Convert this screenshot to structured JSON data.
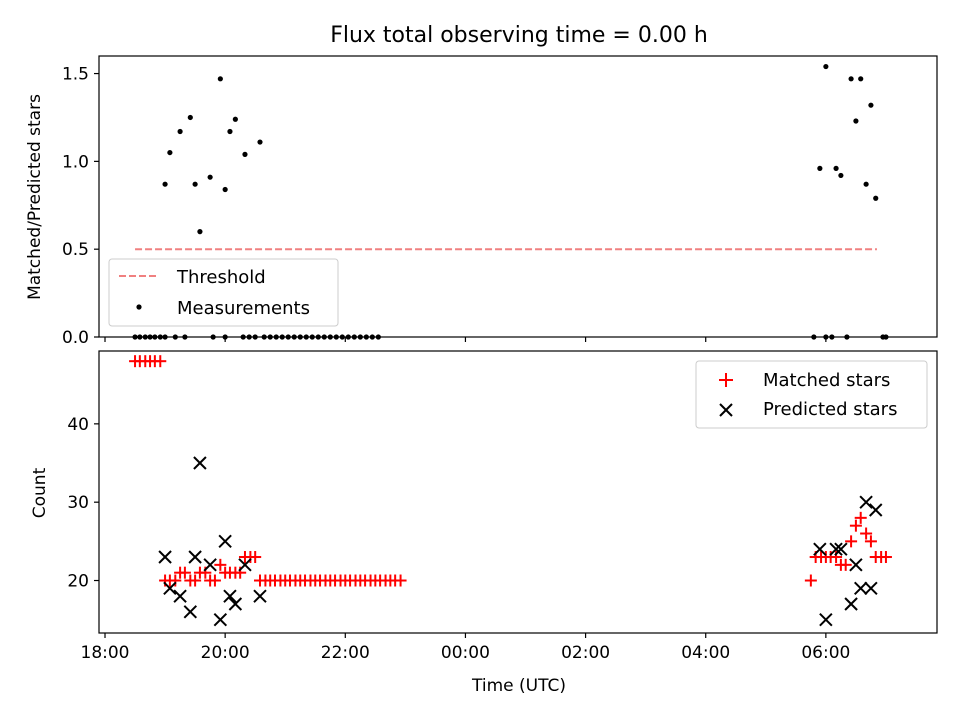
{
  "figure_title": "Flux total observing time = 0.00 h",
  "chart_data": [
    {
      "type": "scatter",
      "title": "Flux total observing time = 0.00 h",
      "xlabel": "",
      "ylabel": "Matched/Predicted stars",
      "x_unit": "hours since 18:00 UTC",
      "xlim": [
        -0.1,
        13.85
      ],
      "ylim": [
        0,
        1.6
      ],
      "x_ticks": [
        0,
        2,
        4,
        6,
        8,
        10,
        12
      ],
      "x_tick_labels": [
        "",
        "",
        "",
        "",
        "",
        "",
        ""
      ],
      "y_ticks": [
        0,
        0.5,
        1.0,
        1.5
      ],
      "y_tick_labels": [
        "0.0",
        "0.5",
        "1.0",
        "1.5"
      ],
      "legend_position": "lower-left",
      "grid": false,
      "threshold": {
        "name": "Threshold",
        "y": 0.5,
        "x": [
          0.5,
          12.85
        ],
        "color": "#f08080",
        "style": "dashed"
      },
      "series": [
        {
          "name": "Measurements",
          "marker": "dot",
          "color": "#000000",
          "points": [
            [
              0.5,
              0
            ],
            [
              0.58,
              0
            ],
            [
              0.67,
              0
            ],
            [
              0.75,
              0
            ],
            [
              0.83,
              0
            ],
            [
              0.92,
              0
            ],
            [
              1.0,
              0
            ],
            [
              1.17,
              0
            ],
            [
              1.33,
              0
            ],
            [
              1.8,
              0
            ],
            [
              2.0,
              0
            ],
            [
              2.3,
              0
            ],
            [
              2.4,
              0
            ],
            [
              2.5,
              0
            ],
            [
              2.65,
              0
            ],
            [
              2.75,
              0
            ],
            [
              2.85,
              0
            ],
            [
              2.95,
              0
            ],
            [
              3.05,
              0
            ],
            [
              3.15,
              0
            ],
            [
              3.25,
              0
            ],
            [
              3.35,
              0
            ],
            [
              3.45,
              0
            ],
            [
              3.55,
              0
            ],
            [
              3.65,
              0
            ],
            [
              3.75,
              0
            ],
            [
              3.85,
              0
            ],
            [
              3.95,
              0
            ],
            [
              4.05,
              0
            ],
            [
              4.15,
              0
            ],
            [
              4.25,
              0
            ],
            [
              4.35,
              0
            ],
            [
              4.45,
              0
            ],
            [
              4.55,
              0
            ],
            [
              1.0,
              0.87
            ],
            [
              1.08,
              1.05
            ],
            [
              1.25,
              1.17
            ],
            [
              1.42,
              1.25
            ],
            [
              1.5,
              0.87
            ],
            [
              1.58,
              0.6
            ],
            [
              1.75,
              0.91
            ],
            [
              1.92,
              1.47
            ],
            [
              2.0,
              0.84
            ],
            [
              2.08,
              1.17
            ],
            [
              2.17,
              1.24
            ],
            [
              2.33,
              1.04
            ],
            [
              2.58,
              1.11
            ],
            [
              11.8,
              0
            ],
            [
              12.0,
              0
            ],
            [
              12.1,
              0
            ],
            [
              12.35,
              0
            ],
            [
              12.95,
              0
            ],
            [
              13.0,
              0
            ],
            [
              11.9,
              0.96
            ],
            [
              12.0,
              1.54
            ],
            [
              12.17,
              0.96
            ],
            [
              12.25,
              0.92
            ],
            [
              12.42,
              1.47
            ],
            [
              12.5,
              1.23
            ],
            [
              12.58,
              1.47
            ],
            [
              12.67,
              0.87
            ],
            [
              12.75,
              1.32
            ],
            [
              12.83,
              0.79
            ]
          ]
        }
      ]
    },
    {
      "type": "scatter",
      "title": "",
      "xlabel": "Time (UTC)",
      "ylabel": "Count",
      "x_unit": "hours since 18:00 UTC",
      "xlim": [
        -0.1,
        13.85
      ],
      "ylim": [
        13.3,
        49.3
      ],
      "x_ticks": [
        0,
        2,
        4,
        6,
        8,
        10,
        12
      ],
      "x_tick_labels": [
        "18:00",
        "20:00",
        "22:00",
        "00:00",
        "02:00",
        "04:00",
        "06:00"
      ],
      "y_ticks": [
        20,
        30,
        40
      ],
      "y_tick_labels": [
        "20",
        "30",
        "40"
      ],
      "legend_position": "upper-right",
      "grid": false,
      "series": [
        {
          "name": "Matched stars",
          "marker": "plus",
          "color": "#ff0000",
          "points": [
            [
              0.5,
              48
            ],
            [
              0.58,
              48
            ],
            [
              0.67,
              48
            ],
            [
              0.75,
              48
            ],
            [
              0.83,
              48
            ],
            [
              0.92,
              48
            ],
            [
              1.0,
              20
            ],
            [
              1.08,
              20
            ],
            [
              1.17,
              20
            ],
            [
              1.25,
              21
            ],
            [
              1.33,
              21
            ],
            [
              1.42,
              20
            ],
            [
              1.5,
              20
            ],
            [
              1.58,
              21
            ],
            [
              1.67,
              21
            ],
            [
              1.75,
              20
            ],
            [
              1.83,
              20
            ],
            [
              1.92,
              22
            ],
            [
              2.0,
              21
            ],
            [
              2.08,
              21
            ],
            [
              2.17,
              21
            ],
            [
              2.25,
              21
            ],
            [
              2.33,
              23
            ],
            [
              2.42,
              23
            ],
            [
              2.5,
              23
            ],
            [
              2.58,
              20
            ],
            [
              2.67,
              20
            ],
            [
              2.75,
              20
            ],
            [
              2.83,
              20
            ],
            [
              2.92,
              20
            ],
            [
              3.0,
              20
            ],
            [
              3.08,
              20
            ],
            [
              3.17,
              20
            ],
            [
              3.25,
              20
            ],
            [
              3.33,
              20
            ],
            [
              3.42,
              20
            ],
            [
              3.5,
              20
            ],
            [
              3.58,
              20
            ],
            [
              3.67,
              20
            ],
            [
              3.75,
              20
            ],
            [
              3.83,
              20
            ],
            [
              3.92,
              20
            ],
            [
              4.0,
              20
            ],
            [
              4.08,
              20
            ],
            [
              4.17,
              20
            ],
            [
              4.25,
              20
            ],
            [
              4.33,
              20
            ],
            [
              4.42,
              20
            ],
            [
              4.5,
              20
            ],
            [
              4.58,
              20
            ],
            [
              4.67,
              20
            ],
            [
              4.75,
              20
            ],
            [
              4.83,
              20
            ],
            [
              4.92,
              20
            ],
            [
              11.75,
              20
            ],
            [
              11.83,
              23
            ],
            [
              11.92,
              23
            ],
            [
              12.0,
              23
            ],
            [
              12.08,
              23
            ],
            [
              12.17,
              23
            ],
            [
              12.25,
              22
            ],
            [
              12.33,
              22
            ],
            [
              12.42,
              25
            ],
            [
              12.5,
              27
            ],
            [
              12.58,
              28
            ],
            [
              12.67,
              26
            ],
            [
              12.75,
              25
            ],
            [
              12.83,
              23
            ],
            [
              12.92,
              23
            ],
            [
              13.0,
              23
            ]
          ]
        },
        {
          "name": "Predicted stars",
          "marker": "x",
          "color": "#000000",
          "points": [
            [
              1.0,
              23
            ],
            [
              1.08,
              19
            ],
            [
              1.25,
              18
            ],
            [
              1.42,
              16
            ],
            [
              1.5,
              23
            ],
            [
              1.58,
              35
            ],
            [
              1.75,
              22
            ],
            [
              1.92,
              15
            ],
            [
              2.0,
              25
            ],
            [
              2.08,
              18
            ],
            [
              2.17,
              17
            ],
            [
              2.33,
              22
            ],
            [
              2.58,
              18
            ],
            [
              11.9,
              24
            ],
            [
              12.0,
              15
            ],
            [
              12.17,
              24
            ],
            [
              12.25,
              24
            ],
            [
              12.42,
              17
            ],
            [
              12.5,
              22
            ],
            [
              12.58,
              19
            ],
            [
              12.67,
              30
            ],
            [
              12.75,
              19
            ],
            [
              12.83,
              29
            ]
          ]
        }
      ]
    }
  ]
}
